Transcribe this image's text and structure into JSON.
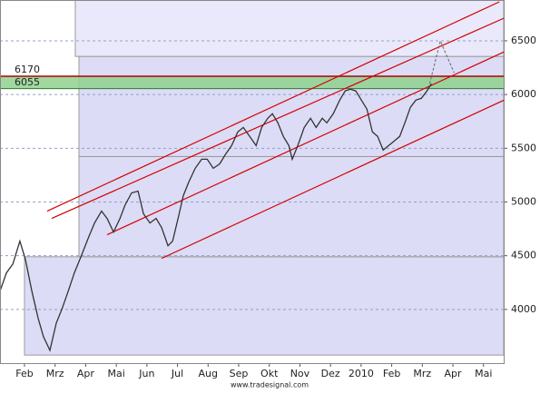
{
  "chart_data": {
    "type": "line",
    "source": "www.tradesignal.com",
    "color": "#333333",
    "x": [
      0.2,
      0.41,
      0.62,
      0.85,
      1.03,
      1.24,
      1.45,
      1.62,
      1.83,
      2.04,
      2.22,
      2.43,
      2.63,
      2.87,
      3.08,
      3.29,
      3.52,
      3.7,
      3.91,
      4.12,
      4.29,
      4.5,
      4.71,
      4.89,
      5.1,
      5.3,
      5.48,
      5.69,
      5.84,
      6.02,
      6.19,
      6.37,
      6.58,
      6.79,
      6.97,
      7.17,
      7.38,
      7.56,
      7.77,
      7.97,
      8.15,
      8.36,
      8.57,
      8.75,
      8.95,
      9.1,
      9.28,
      9.46,
      9.64,
      9.75,
      9.93,
      10.14,
      10.35,
      10.53,
      10.73,
      10.88,
      11.09,
      11.3,
      11.48,
      11.65,
      11.83,
      12.01,
      12.19,
      12.37,
      12.54,
      12.72,
      12.9,
      13.08,
      13.26,
      13.43,
      13.61,
      13.79,
      13.97,
      14.15,
      14.3
    ],
    "values": [
      4170,
      4340,
      4424,
      4636,
      4466,
      4170,
      3916,
      3746,
      3619,
      3873,
      4000,
      4170,
      4340,
      4508,
      4661,
      4805,
      4915,
      4847,
      4720,
      4847,
      4974,
      5084,
      5101,
      4890,
      4805,
      4847,
      4763,
      4593,
      4636,
      4847,
      5059,
      5186,
      5313,
      5398,
      5398,
      5313,
      5355,
      5440,
      5525,
      5652,
      5694,
      5610,
      5525,
      5694,
      5779,
      5821,
      5737,
      5610,
      5525,
      5398,
      5525,
      5694,
      5779,
      5694,
      5779,
      5737,
      5821,
      5948,
      6033,
      6050,
      6033,
      5948,
      5864,
      5652,
      5610,
      5483,
      5525,
      5567,
      5610,
      5737,
      5881,
      5948,
      5965,
      6033,
      6101
    ],
    "xlim": [
      0.2,
      16.66
    ],
    "ylim": [
      3500,
      6880
    ],
    "yticks": [
      4000,
      4500,
      5000,
      5500,
      6000,
      6500
    ],
    "xticks": [
      {
        "value": 1,
        "label": "Feb"
      },
      {
        "value": 2,
        "label": "Mrz"
      },
      {
        "value": 3,
        "label": "Apr"
      },
      {
        "value": 4,
        "label": "Mai"
      },
      {
        "value": 5,
        "label": "Jun"
      },
      {
        "value": 6,
        "label": "Jul"
      },
      {
        "value": 7,
        "label": "Aug"
      },
      {
        "value": 8,
        "label": "Sep"
      },
      {
        "value": 9,
        "label": "Okt"
      },
      {
        "value": 10,
        "label": "Nov"
      },
      {
        "value": 11,
        "label": "Dez"
      },
      {
        "value": 12,
        "label": "2010"
      },
      {
        "value": 13,
        "label": "Feb"
      },
      {
        "value": 14,
        "label": "Mrz"
      },
      {
        "value": 15,
        "label": "Apr"
      },
      {
        "value": 16,
        "label": "Mai"
      }
    ],
    "grid": true,
    "resistance": 6170,
    "support": 6055,
    "zones": [
      {
        "x": [
          1,
          16.66
        ],
        "values": [
          3575,
          4490
        ]
      },
      {
        "x": [
          2.78,
          16.66
        ],
        "values": [
          4490,
          5423
        ]
      },
      {
        "x": [
          2.78,
          16.66
        ],
        "values": [
          5423,
          6355
        ]
      },
      {
        "x": [
          2.66,
          16.66
        ],
        "values": [
          6355,
          6880
        ]
      }
    ],
    "channels": [
      {
        "x": [
          1.74,
          16.52
        ],
        "values": [
          4915,
          6863
        ]
      },
      {
        "x": [
          1.89,
          16.67
        ],
        "values": [
          4847,
          6711
        ]
      },
      {
        "x": [
          3.7,
          16.67
        ],
        "values": [
          4695,
          6397
        ]
      },
      {
        "x": [
          5.48,
          16.67
        ],
        "values": [
          4475,
          5948
        ]
      }
    ],
    "projection": {
      "x": [
        14.24,
        14.59,
        15.04
      ],
      "values": [
        6101,
        6499,
        6202
      ]
    }
  }
}
